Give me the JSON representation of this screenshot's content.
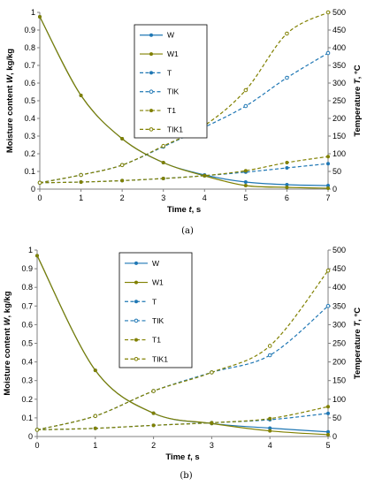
{
  "colors": {
    "blue": "#1f77b4",
    "olive": "#808000",
    "axis": "#7f7f7f"
  },
  "chart_data": [
    {
      "type": "line",
      "caption": "(a)",
      "xlabel": "Time t, s",
      "ylabel": "Moisture content W, kg/kg",
      "y2label": "Temperature T, °C",
      "xlim": [
        0,
        7
      ],
      "ylim": [
        0,
        1
      ],
      "y2lim": [
        0,
        500
      ],
      "xticks": [
        "0",
        "1",
        "2",
        "3",
        "4",
        "5",
        "6",
        "7"
      ],
      "yticks": [
        "0",
        "0.1",
        "0.2",
        "0.3",
        "0.4",
        "0.5",
        "0.6",
        "0.7",
        "0.8",
        "0.9",
        "1"
      ],
      "y2ticks": [
        "0",
        "50",
        "100",
        "150",
        "200",
        "250",
        "300",
        "350",
        "400",
        "450",
        "500"
      ],
      "legend": [
        "W",
        "W1",
        "T",
        "TIK",
        "T1",
        "TIK1"
      ],
      "series": [
        {
          "name": "W",
          "axis": "left",
          "color": "blue",
          "dash": false,
          "marker": "dot",
          "x": [
            0,
            1,
            2,
            3,
            4,
            5,
            6,
            7
          ],
          "y": [
            0.975,
            0.53,
            0.285,
            0.15,
            0.08,
            0.04,
            0.025,
            0.02
          ]
        },
        {
          "name": "W1",
          "axis": "left",
          "color": "olive",
          "dash": false,
          "marker": "dot",
          "x": [
            0,
            1,
            2,
            3,
            4,
            5,
            6,
            7
          ],
          "y": [
            0.975,
            0.53,
            0.285,
            0.15,
            0.075,
            0.02,
            0.01,
            0.005
          ]
        },
        {
          "name": "T",
          "axis": "right",
          "color": "blue",
          "dash": true,
          "marker": "dot",
          "x": [
            0,
            1,
            2,
            3,
            4,
            5,
            6,
            7
          ],
          "y": [
            18,
            20,
            24,
            30,
            38,
            48,
            60,
            72
          ]
        },
        {
          "name": "TIK",
          "axis": "right",
          "color": "blue",
          "dash": true,
          "marker": "open",
          "x": [
            0,
            1,
            2,
            3,
            4,
            5,
            6,
            7
          ],
          "y": [
            18,
            40,
            68,
            120,
            175,
            235,
            315,
            385
          ]
        },
        {
          "name": "T1",
          "axis": "right",
          "color": "olive",
          "dash": true,
          "marker": "dot",
          "x": [
            0,
            1,
            2,
            3,
            4,
            5,
            6,
            7
          ],
          "y": [
            18,
            20,
            24,
            30,
            38,
            52,
            75,
            92
          ]
        },
        {
          "name": "TIK1",
          "axis": "right",
          "color": "olive",
          "dash": true,
          "marker": "open",
          "x": [
            0,
            1,
            2,
            3,
            4,
            5,
            6,
            7
          ],
          "y": [
            18,
            40,
            68,
            122,
            180,
            280,
            440,
            500
          ]
        }
      ]
    },
    {
      "type": "line",
      "caption": "(b)",
      "xlabel": "Time t, s",
      "ylabel": "Moisture content W, kg/kg",
      "y2label": "Temperature T, °C",
      "xlim": [
        0,
        5
      ],
      "ylim": [
        0,
        1
      ],
      "y2lim": [
        0,
        500
      ],
      "xticks": [
        "0",
        "1",
        "2",
        "3",
        "4",
        "5"
      ],
      "yticks": [
        "0",
        "0.1",
        "0.2",
        "0.3",
        "0.4",
        "0.5",
        "0.6",
        "0.7",
        "0.8",
        "0.9",
        "1"
      ],
      "y2ticks": [
        "0",
        "50",
        "100",
        "150",
        "200",
        "250",
        "300",
        "350",
        "400",
        "450",
        "500"
      ],
      "legend": [
        "W",
        "W1",
        "T",
        "TIK",
        "T1",
        "TIK1"
      ],
      "series": [
        {
          "name": "W",
          "axis": "left",
          "color": "blue",
          "dash": false,
          "marker": "dot",
          "x": [
            0,
            1,
            2,
            3,
            4,
            5
          ],
          "y": [
            0.97,
            0.355,
            0.125,
            0.07,
            0.045,
            0.025
          ]
        },
        {
          "name": "W1",
          "axis": "left",
          "color": "olive",
          "dash": false,
          "marker": "dot",
          "x": [
            0,
            1,
            2,
            3,
            4,
            5
          ],
          "y": [
            0.97,
            0.355,
            0.125,
            0.07,
            0.03,
            0.01
          ]
        },
        {
          "name": "T",
          "axis": "right",
          "color": "blue",
          "dash": true,
          "marker": "dot",
          "x": [
            0,
            1,
            2,
            3,
            4,
            5
          ],
          "y": [
            18,
            22,
            30,
            37,
            45,
            62
          ]
        },
        {
          "name": "TIK",
          "axis": "right",
          "color": "blue",
          "dash": true,
          "marker": "open",
          "x": [
            0,
            1,
            2,
            3,
            4,
            5
          ],
          "y": [
            18,
            55,
            122,
            172,
            218,
            350
          ]
        },
        {
          "name": "T1",
          "axis": "right",
          "color": "olive",
          "dash": true,
          "marker": "dot",
          "x": [
            0,
            1,
            2,
            3,
            4,
            5
          ],
          "y": [
            18,
            22,
            30,
            37,
            48,
            80
          ]
        },
        {
          "name": "TIK1",
          "axis": "right",
          "color": "olive",
          "dash": true,
          "marker": "open",
          "x": [
            0,
            1,
            2,
            3,
            4,
            5
          ],
          "y": [
            18,
            55,
            122,
            172,
            243,
            445
          ]
        }
      ]
    }
  ]
}
